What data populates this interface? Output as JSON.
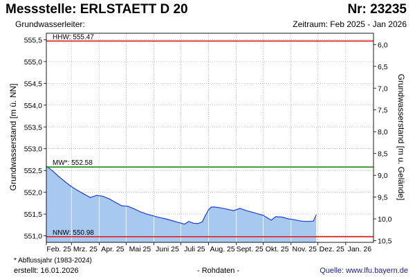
{
  "header": {
    "title": "Messstelle: ERLSTAETT D 20",
    "number": "Nr: 23235",
    "aquifer_label": "Grundwasserleiter:",
    "period": "Zeitraum: Feb 2025 - Jan 2026"
  },
  "footer": {
    "footnote": "* Abflussjahr (1983-2024)",
    "created": "erstellt:  16.01.2026",
    "raw_data": "- Rohdaten -",
    "source": "Quelle:  www.lfu.bayern.de"
  },
  "colors": {
    "fill": "#a7c8ef",
    "line": "#1f3fd6",
    "hhw": "#e02020",
    "nnw": "#e02020",
    "mw": "#1a8a1a",
    "grid": "#9a9a9a",
    "background": "#ffffff"
  },
  "chart_data": {
    "type": "area",
    "ylabel": "Grundwasserstand [m ü. NN]",
    "ylabel_right": "Grundwasserstand [m u. Gelände]",
    "ylim": [
      550.85,
      555.65
    ],
    "ylim_right": [
      10.54,
      5.74
    ],
    "y_ticks": [
      "555,5",
      "555,0",
      "554,5",
      "554,0",
      "553,5",
      "553,0",
      "552,5",
      "552,0",
      "551,5",
      "551,0"
    ],
    "y_tick_values": [
      555.5,
      555.0,
      554.5,
      554.0,
      553.5,
      553.0,
      552.5,
      552.0,
      551.5,
      551.0
    ],
    "y_right_ticks": [
      "6,0",
      "6,5",
      "7,0",
      "7,5",
      "8,0",
      "8,5",
      "9,0",
      "9,5",
      "10,0",
      "10,5"
    ],
    "y_right_tick_values": [
      6.0,
      6.5,
      7.0,
      7.5,
      8.0,
      8.5,
      9.0,
      9.5,
      10.0,
      10.5
    ],
    "x_ticks": [
      "Feb. 25",
      "Mrz. 25",
      "Apr. 25",
      "Mai 25",
      "Juni 25",
      "Juli 25",
      "Aug. 25",
      "Sept. 25",
      "Okt. 25",
      "Nov. 25",
      "Dez. 25",
      "Jan. 26"
    ],
    "x_tick_values": [
      "2025-02-01",
      "2025-03-01",
      "2025-04-01",
      "2025-05-01",
      "2025-06-01",
      "2025-07-01",
      "2025-08-01",
      "2025-09-01",
      "2025-10-01",
      "2025-11-01",
      "2025-12-01",
      "2026-01-01"
    ],
    "xlim": [
      "2025-02-01",
      "2026-02-01"
    ],
    "grid": true,
    "reference_lines": [
      {
        "label": "HHW: 555.47",
        "value": 555.47
      },
      {
        "label": "MW*: 552.58",
        "value": 552.58
      },
      {
        "label": "NNW: 550.98",
        "value": 550.98
      }
    ],
    "series": [
      {
        "x": [
          "2025-02-01",
          "2025-02-08",
          "2025-02-15",
          "2025-02-22",
          "2025-03-01",
          "2025-03-08",
          "2025-03-15",
          "2025-03-22",
          "2025-03-29",
          "2025-04-05",
          "2025-04-12",
          "2025-04-19",
          "2025-04-26",
          "2025-05-03",
          "2025-05-10",
          "2025-05-17",
          "2025-05-24",
          "2025-05-31",
          "2025-06-07",
          "2025-06-14",
          "2025-06-21",
          "2025-06-28",
          "2025-07-05",
          "2025-07-10",
          "2025-07-15",
          "2025-07-20",
          "2025-07-25",
          "2025-07-28",
          "2025-08-01",
          "2025-08-04",
          "2025-08-08",
          "2025-08-15",
          "2025-08-22",
          "2025-08-29",
          "2025-09-05",
          "2025-09-12",
          "2025-09-19",
          "2025-09-26",
          "2025-10-01",
          "2025-10-05",
          "2025-10-10",
          "2025-10-15",
          "2025-10-22",
          "2025-10-29",
          "2025-11-05",
          "2025-11-12",
          "2025-11-19",
          "2025-11-26",
          "2025-11-29"
        ],
        "values": [
          552.6,
          552.49,
          552.36,
          552.24,
          552.13,
          552.04,
          551.96,
          551.88,
          551.93,
          551.91,
          551.85,
          551.77,
          551.69,
          551.68,
          551.62,
          551.55,
          551.5,
          551.46,
          551.42,
          551.39,
          551.35,
          551.31,
          551.27,
          551.33,
          551.29,
          551.28,
          551.32,
          551.45,
          551.6,
          551.66,
          551.66,
          551.64,
          551.61,
          551.58,
          551.63,
          551.58,
          551.54,
          551.5,
          551.47,
          551.42,
          551.36,
          551.44,
          551.43,
          551.39,
          551.37,
          551.34,
          551.33,
          551.34,
          551.48
        ]
      }
    ]
  }
}
